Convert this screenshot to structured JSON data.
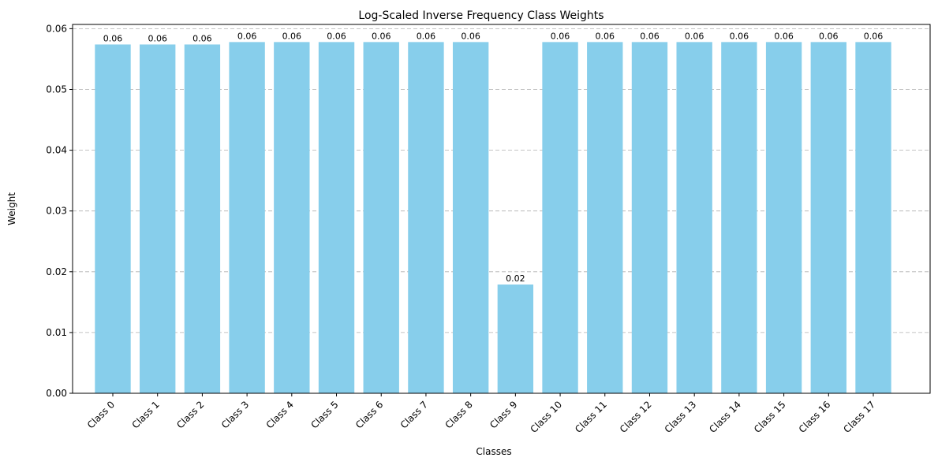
{
  "chart_data": {
    "type": "bar",
    "title": "Log-Scaled Inverse Frequency Class Weights",
    "xlabel": "Classes",
    "ylabel": "Weight",
    "categories": [
      "Class 0",
      "Class 1",
      "Class 2",
      "Class 3",
      "Class 4",
      "Class 5",
      "Class 6",
      "Class 7",
      "Class 8",
      "Class 9",
      "Class 10",
      "Class 11",
      "Class 12",
      "Class 13",
      "Class 14",
      "Class 15",
      "Class 16",
      "Class 17"
    ],
    "values": [
      0.0574,
      0.0574,
      0.0574,
      0.0578,
      0.0578,
      0.0578,
      0.0578,
      0.0578,
      0.0578,
      0.0179,
      0.0578,
      0.0578,
      0.0578,
      0.0578,
      0.0578,
      0.0578,
      0.0578,
      0.0578
    ],
    "data_labels": [
      "0.06",
      "0.06",
      "0.06",
      "0.06",
      "0.06",
      "0.06",
      "0.06",
      "0.06",
      "0.06",
      "0.02",
      "0.06",
      "0.06",
      "0.06",
      "0.06",
      "0.06",
      "0.06",
      "0.06",
      "0.06"
    ],
    "yticks": [
      "0.00",
      "0.01",
      "0.02",
      "0.03",
      "0.04",
      "0.05",
      "0.06"
    ],
    "ylim": [
      0,
      0.0607
    ],
    "grid": "y-dashed",
    "bar_color": "#87ceeb"
  }
}
